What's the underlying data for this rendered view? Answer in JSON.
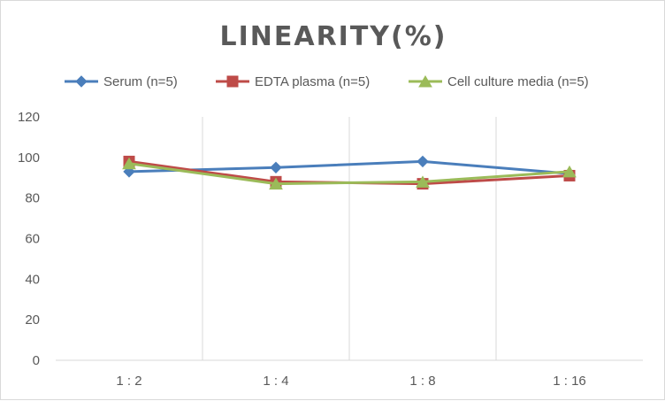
{
  "chart_data": {
    "type": "line",
    "title": "LINEARITY(%)",
    "categories": [
      "1:2",
      "1:4",
      "1:8",
      "1:16"
    ],
    "ylim": [
      0,
      120
    ],
    "yticks": [
      0,
      20,
      40,
      60,
      80,
      100,
      120
    ],
    "grid": "vertical",
    "legend_position": "top",
    "series": [
      {
        "name": "Serum (n=5)",
        "values": [
          93,
          95,
          98,
          92
        ],
        "color": "#4a7ebb",
        "marker": "diamond"
      },
      {
        "name": "EDTA plasma (n=5)",
        "values": [
          98,
          88,
          87,
          91
        ],
        "color": "#be4b48",
        "marker": "square"
      },
      {
        "name": "Cell culture media (n=5)",
        "values": [
          97,
          87,
          88,
          93
        ],
        "color": "#9bbb59",
        "marker": "triangle"
      }
    ]
  }
}
